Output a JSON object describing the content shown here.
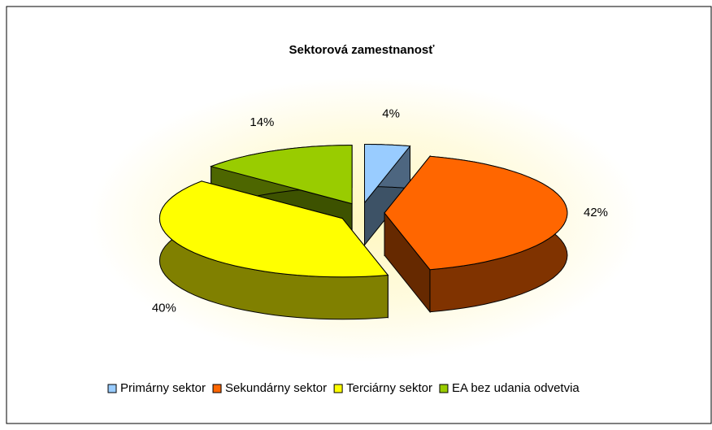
{
  "chart_data": {
    "type": "pie",
    "title": "Sektorová zamestnanosť",
    "categories": [
      "Primárny sektor",
      "Sekundárny sektor",
      "Terciárny sektor",
      "EA bez udania odvetvia"
    ],
    "values": [
      4,
      42,
      40,
      14
    ],
    "value_labels": [
      "4%",
      "42%",
      "40%",
      "14%"
    ],
    "colors": [
      "#99ccff",
      "#ff6600",
      "#ffff00",
      "#99cc00"
    ],
    "legend": "bottom"
  }
}
